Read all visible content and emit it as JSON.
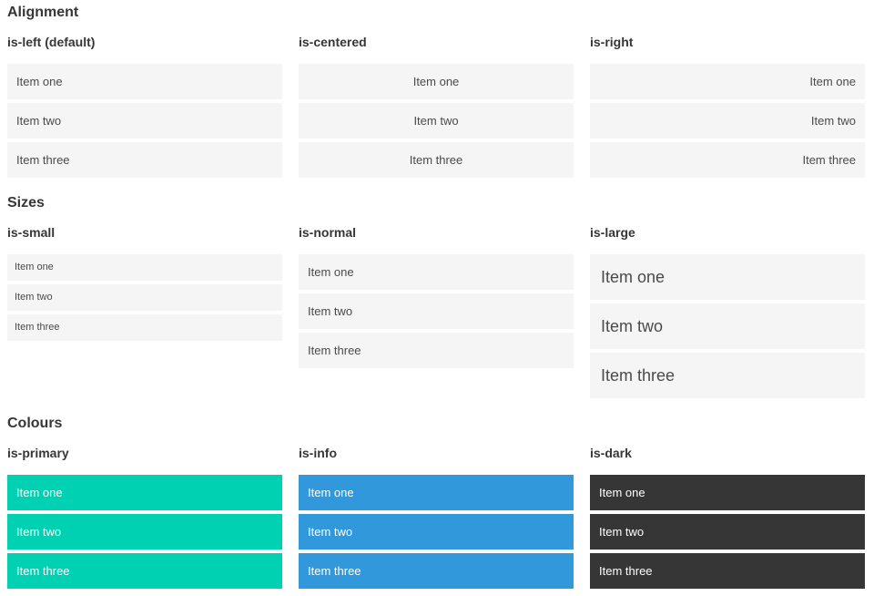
{
  "colors": {
    "page_background": "#ffffff",
    "item_background": "#f5f5f5",
    "item_text": "#4a4a4a",
    "heading_text": "#363636",
    "primary": "#00d1b2",
    "info": "#3298dc",
    "dark": "#363636",
    "on_color_text": "#ffffff"
  },
  "sections": [
    {
      "title": "Alignment",
      "columns": [
        {
          "label": "is-left (default)",
          "items": [
            "Item one",
            "Item two",
            "Item three"
          ]
        },
        {
          "label": "is-centered",
          "items": [
            "Item one",
            "Item two",
            "Item three"
          ]
        },
        {
          "label": "is-right",
          "items": [
            "Item one",
            "Item two",
            "Item three"
          ]
        }
      ]
    },
    {
      "title": "Sizes",
      "columns": [
        {
          "label": "is-small",
          "items": [
            "Item one",
            "Item two",
            "Item three"
          ]
        },
        {
          "label": "is-normal",
          "items": [
            "Item one",
            "Item two",
            "Item three"
          ]
        },
        {
          "label": "is-large",
          "items": [
            "Item one",
            "Item two",
            "Item three"
          ]
        }
      ]
    },
    {
      "title": "Colours",
      "columns": [
        {
          "label": "is-primary",
          "items": [
            "Item one",
            "Item two",
            "Item three"
          ]
        },
        {
          "label": "is-info",
          "items": [
            "Item one",
            "Item two",
            "Item three"
          ]
        },
        {
          "label": "is-dark",
          "items": [
            "Item one",
            "Item two",
            "Item three"
          ]
        }
      ]
    }
  ]
}
